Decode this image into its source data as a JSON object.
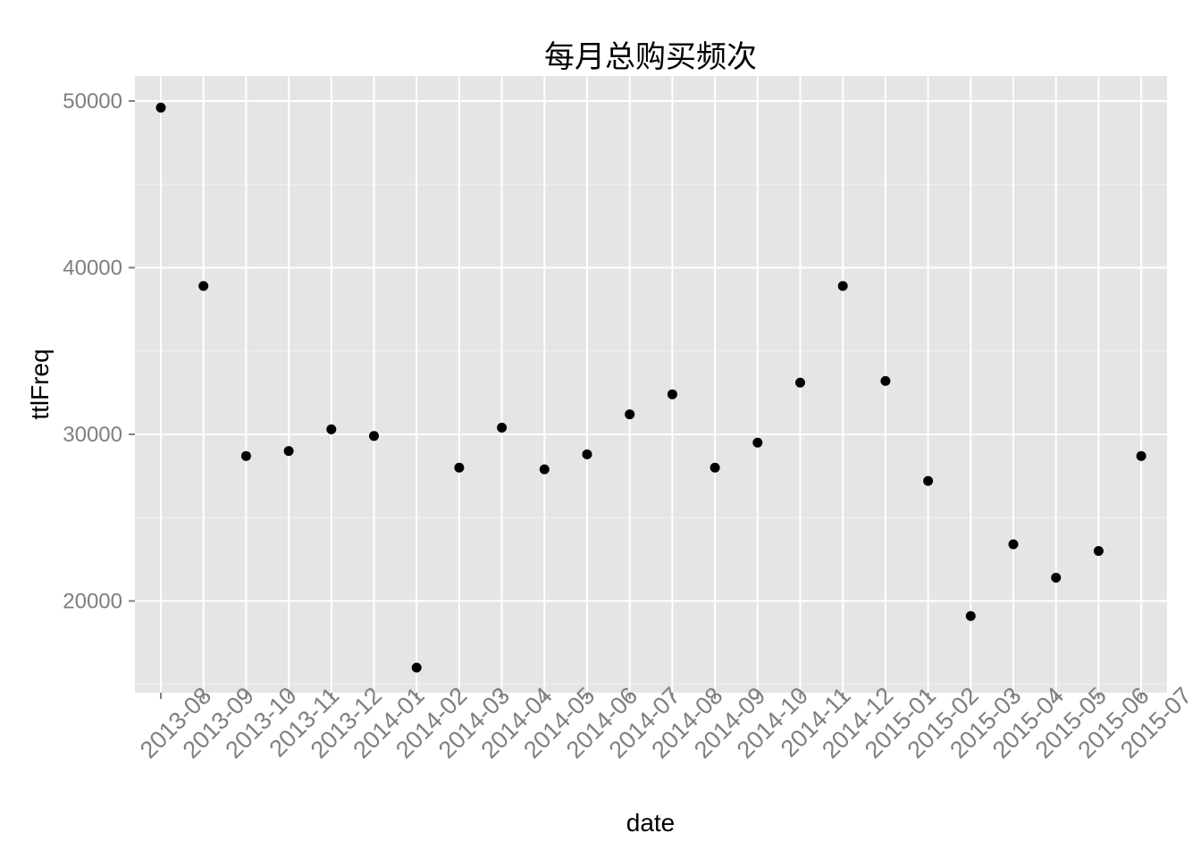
{
  "chart_data": {
    "type": "scatter",
    "title": "每月总购买频次",
    "xlabel": "date",
    "ylabel": "ttlFreq",
    "categories": [
      "2013-08",
      "2013-09",
      "2013-10",
      "2013-11",
      "2013-12",
      "2014-01",
      "2014-02",
      "2014-03",
      "2014-04",
      "2014-05",
      "2014-06",
      "2014-07",
      "2014-08",
      "2014-09",
      "2014-10",
      "2014-11",
      "2014-12",
      "2015-01",
      "2015-02",
      "2015-03",
      "2015-04",
      "2015-05",
      "2015-06",
      "2015-07"
    ],
    "values": [
      49600,
      38900,
      28700,
      29000,
      30300,
      29900,
      16000,
      28000,
      30400,
      27900,
      28800,
      31200,
      32400,
      28000,
      29500,
      33100,
      38900,
      33200,
      27200,
      19100,
      23400,
      21400,
      23000,
      28700
    ],
    "ylim": [
      14500,
      51500
    ],
    "yticks": [
      20000,
      30000,
      40000,
      50000
    ],
    "ytick_labels": [
      "20000",
      "30000",
      "40000",
      "50000"
    ],
    "grid": true,
    "colors": {
      "panel": "#e5e5e5",
      "grid_major": "#ffffff",
      "grid_minor": "#f2f2f2",
      "point": "#000000",
      "tick_text": "#7f7f7f"
    }
  }
}
